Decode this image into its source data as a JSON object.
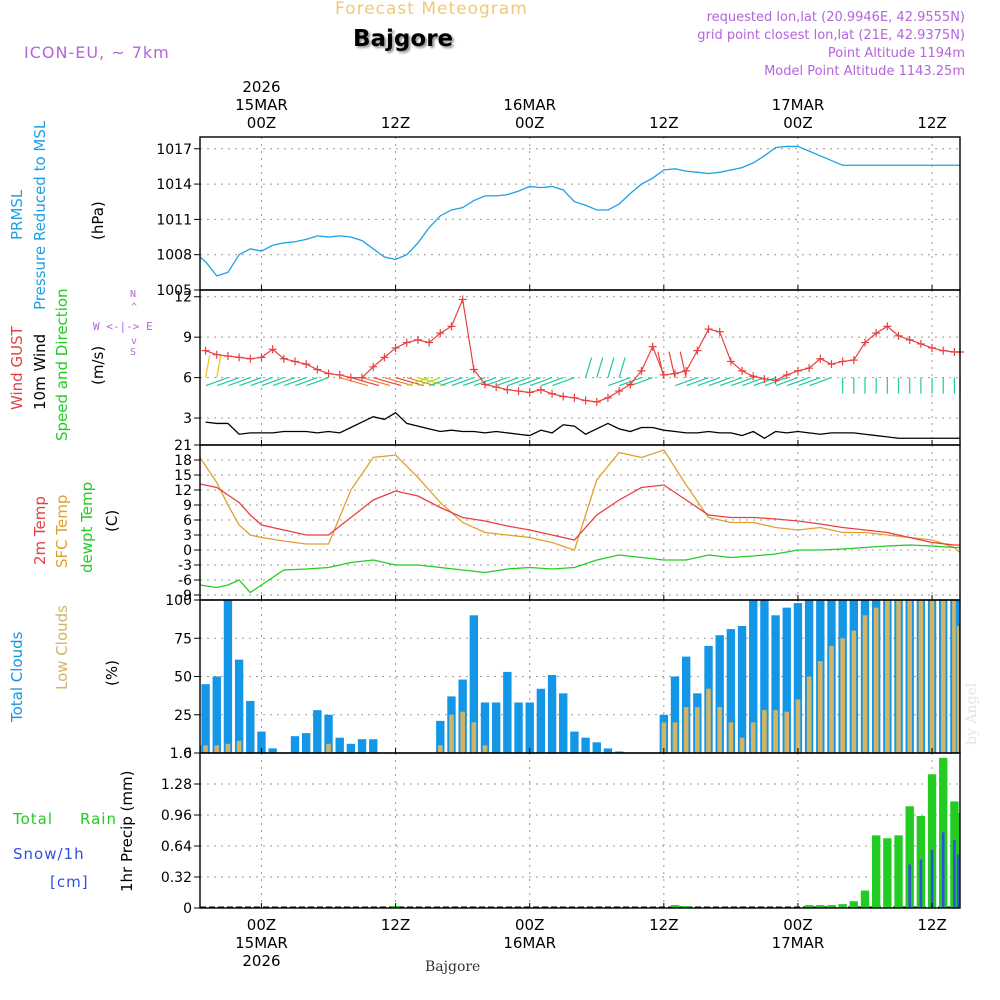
{
  "header": {
    "product": "Forecast Meteogram",
    "location": "Bajgore",
    "model": "ICON-EU, ~ 7km",
    "requested": "requested lon,lat (20.9946E, 42.9555N)",
    "grid_point": "grid point closest lon,lat (21E, 42.9375N)",
    "point_altitude": "Point Altitude 1194m",
    "model_altitude": "Model Point Altitude 1143.25m",
    "footer_location": "Bajgore",
    "watermark": "by Angel"
  },
  "time_axis": {
    "top": [
      {
        "label": "00Z",
        "sub": "15MAR",
        "year": "2026",
        "hour": 0
      },
      {
        "label": "12Z",
        "sub": "",
        "year": "",
        "hour": 12
      },
      {
        "label": "00Z",
        "sub": "16MAR",
        "year": "",
        "hour": 24
      },
      {
        "label": "12Z",
        "sub": "",
        "year": "",
        "hour": 36
      },
      {
        "label": "00Z",
        "sub": "17MAR",
        "year": "",
        "hour": 48
      },
      {
        "label": "12Z",
        "sub": "",
        "year": "",
        "hour": 60
      }
    ],
    "bottom": [
      {
        "label": "00Z",
        "sub": "15MAR",
        "year": "2026",
        "hour": 0
      },
      {
        "label": "12Z",
        "sub": "",
        "year": "",
        "hour": 12
      },
      {
        "label": "00Z",
        "sub": "16MAR",
        "year": "",
        "hour": 24
      },
      {
        "label": "12Z",
        "sub": "",
        "year": "",
        "hour": 36
      },
      {
        "label": "00Z",
        "sub": "17MAR",
        "year": "",
        "hour": 48
      },
      {
        "label": "12Z",
        "sub": "",
        "year": "",
        "hour": 60
      }
    ],
    "start_hour": -5.5,
    "end_hour": 62.5
  },
  "labels": {
    "pressure": {
      "l1": "PRMSL",
      "l2": "Pressure Reduced to MSL",
      "unit": "(hPa)"
    },
    "wind": {
      "l1": "Wind GUST",
      "l2": "10m Wind",
      "l3": "Speed and Direction",
      "unit": "(m/s)",
      "compass_n": "N",
      "compass_s": "S",
      "compass_we": "W <-|-> E",
      "compass_top": "^",
      "compass_bottom": "v"
    },
    "temp": {
      "l1": "2m Temp",
      "l2": "SFC Temp",
      "l3": "dewpt Temp",
      "unit": "(C)"
    },
    "clouds": {
      "l1": "Total Clouds",
      "l2": "Low Clouds",
      "unit": "(%)"
    },
    "precip": {
      "l1": "Total",
      "l1b": "Rain",
      "l2": "Snow/1h",
      "l3": "[cm]",
      "unit": "1hr Precip (mm)"
    }
  },
  "colors": {
    "pressure": "#1ea0e6",
    "gust": "#e84040",
    "wind": "#000000",
    "temp2m": "#e84040",
    "sfc": "#e0a030",
    "dewpt": "#22cc22",
    "total_clouds": "#1496e6",
    "low_clouds": "#d2b464",
    "rain": "#22cc22",
    "snow": "#3050e0",
    "label_purple": "#b464dc",
    "product": "#f0c878"
  },
  "chart_data": [
    {
      "type": "line",
      "title": "PRMSL Pressure Reduced to MSL",
      "ylabel": "(hPa)",
      "ylim": [
        1005,
        1018
      ],
      "yticks": [
        1005,
        1008,
        1011,
        1014,
        1017
      ],
      "x_hours": [
        -5.5,
        -5,
        -4,
        -3,
        -2,
        -1,
        0,
        1,
        2,
        3,
        4,
        5,
        6,
        7,
        8,
        9,
        10,
        11,
        12,
        13,
        14,
        15,
        16,
        17,
        18,
        19,
        20,
        21,
        22,
        23,
        24,
        25,
        26,
        27,
        28,
        29,
        30,
        31,
        32,
        33,
        34,
        35,
        36,
        37,
        38,
        39,
        40,
        41,
        42,
        43,
        44,
        45,
        46,
        47,
        48,
        49,
        50,
        51,
        52,
        53,
        54,
        55,
        56,
        57,
        58,
        59,
        60,
        61,
        62,
        62.5
      ],
      "series": [
        {
          "name": "PRMSL",
          "values": [
            1007.8,
            1007.4,
            1006.2,
            1006.5,
            1008.0,
            1008.5,
            1008.3,
            1008.8,
            1009.0,
            1009.1,
            1009.3,
            1009.6,
            1009.5,
            1009.6,
            1009.5,
            1009.2,
            1008.5,
            1007.8,
            1007.6,
            1008.0,
            1009.0,
            1010.3,
            1011.3,
            1011.8,
            1012.0,
            1012.6,
            1013.0,
            1013.0,
            1013.1,
            1013.4,
            1013.8,
            1013.7,
            1013.8,
            1013.5,
            1012.5,
            1012.2,
            1011.8,
            1011.8,
            1012.3,
            1013.2,
            1014.0,
            1014.5,
            1015.2,
            1015.3,
            1015.1,
            1015.0,
            1014.9,
            1015.0,
            1015.2,
            1015.4,
            1015.8,
            1016.4,
            1017.1,
            1017.2,
            1017.2,
            1016.8,
            1016.4,
            1016.0,
            1015.6,
            1015.6,
            1015.6,
            1015.6,
            1015.6,
            1015.6,
            1015.6,
            1015.6,
            1015.6,
            1015.6,
            1015.6,
            1015.6
          ]
        }
      ]
    },
    {
      "type": "line",
      "title": "Wind GUST / 10m Wind Speed and Direction",
      "ylabel": "(m/s)",
      "ylim": [
        1,
        12.5
      ],
      "yticks": [
        3,
        6,
        9,
        12
      ],
      "gust_x_hours": [
        -5,
        -4,
        -3,
        -2,
        -1,
        0,
        1,
        2,
        3,
        4,
        5,
        6,
        7,
        8,
        9,
        10,
        11,
        12,
        13,
        14,
        15,
        16,
        17,
        18,
        19,
        20,
        21,
        22,
        23,
        24,
        25,
        26,
        27,
        28,
        29,
        30,
        31,
        32,
        33,
        34,
        35,
        36,
        37,
        38,
        39,
        40,
        41,
        42,
        43,
        44,
        45,
        46,
        47,
        48,
        49,
        50,
        51,
        52,
        53,
        54,
        55,
        56,
        57,
        58,
        59,
        60,
        61,
        62,
        62.5
      ],
      "series": [
        {
          "name": "Wind GUST",
          "values": [
            8.0,
            7.7,
            7.6,
            7.5,
            7.4,
            7.5,
            8.1,
            7.4,
            7.2,
            7.0,
            6.6,
            6.3,
            6.2,
            6.0,
            6.0,
            6.8,
            7.5,
            8.2,
            8.6,
            8.8,
            8.6,
            9.3,
            9.8,
            11.8,
            6.6,
            5.5,
            5.3,
            5.1,
            5.0,
            4.9,
            5.1,
            4.8,
            4.6,
            4.5,
            4.3,
            4.2,
            4.5,
            5.0,
            5.5,
            6.5,
            8.3,
            6.2,
            6.3,
            6.5,
            8.0,
            9.6,
            9.4,
            7.2,
            6.5,
            6.1,
            5.9,
            5.8,
            6.2,
            6.5,
            6.7,
            7.4,
            7.0,
            7.2,
            7.3,
            8.6,
            9.3,
            9.8,
            9.1,
            8.8,
            8.5,
            8.2,
            8.0,
            7.9,
            7.9
          ]
        },
        {
          "name": "10m Wind",
          "values": [
            2.7,
            2.6,
            2.6,
            1.8,
            1.9,
            1.9,
            1.9,
            2.0,
            2.0,
            2.0,
            1.9,
            2.0,
            1.9,
            2.3,
            2.7,
            3.1,
            2.9,
            3.4,
            2.6,
            2.4,
            2.2,
            2.0,
            2.1,
            2.0,
            2.0,
            1.9,
            2.0,
            1.9,
            1.8,
            1.7,
            2.1,
            1.9,
            2.5,
            2.4,
            1.8,
            2.2,
            2.6,
            2.2,
            2.0,
            2.3,
            2.3,
            2.1,
            2.0,
            1.9,
            1.9,
            2.0,
            1.9,
            1.9,
            1.7,
            2.0,
            1.5,
            2.0,
            1.9,
            2.0,
            1.9,
            1.8,
            1.9,
            1.9,
            1.9,
            1.8,
            1.7,
            1.6,
            1.5,
            1.5,
            1.5,
            1.5,
            1.5,
            1.5,
            1.5
          ]
        }
      ]
    },
    {
      "type": "line",
      "title": "2m Temp / SFC Temp / dewpt Temp",
      "ylabel": "(C)",
      "ylim": [
        -10,
        21
      ],
      "yticks": [
        -9,
        -6,
        -3,
        0,
        3,
        6,
        9,
        12,
        15,
        18,
        21
      ],
      "x_hours": [
        -5.5,
        -4,
        -3,
        -2,
        -1,
        0,
        2,
        4,
        6,
        8,
        10,
        12,
        14,
        16,
        18,
        20,
        22,
        24,
        26,
        28,
        30,
        32,
        34,
        36,
        38,
        40,
        42,
        44,
        46,
        48,
        50,
        52,
        54,
        56,
        58,
        60,
        62,
        62.5
      ],
      "series": [
        {
          "name": "2m Temp",
          "values": [
            13.2,
            12.5,
            11.0,
            9.5,
            7.0,
            5.0,
            4.0,
            3.0,
            3.0,
            6.5,
            10.0,
            11.8,
            10.8,
            8.5,
            6.5,
            5.8,
            4.8,
            4.0,
            3.0,
            2.0,
            7.0,
            10.0,
            12.5,
            13.0,
            10.0,
            7.0,
            6.5,
            6.5,
            6.2,
            5.8,
            5.2,
            4.5,
            4.0,
            3.5,
            2.5,
            1.5,
            1.0,
            1.0
          ]
        },
        {
          "name": "SFC Temp",
          "values": [
            18.5,
            13.5,
            9.0,
            5.0,
            3.0,
            2.5,
            1.8,
            1.2,
            1.2,
            12.0,
            18.5,
            19.0,
            14.5,
            9.5,
            5.5,
            3.5,
            3.0,
            2.5,
            1.5,
            0.0,
            14.0,
            19.5,
            18.5,
            20.0,
            13.0,
            6.5,
            5.5,
            5.5,
            4.5,
            4.0,
            4.5,
            3.5,
            3.5,
            3.0,
            2.5,
            2.0,
            0.5,
            -0.5
          ]
        },
        {
          "name": "dewpt Temp",
          "values": [
            -7.0,
            -7.5,
            -7.0,
            -6.0,
            -8.5,
            -7.0,
            -4.0,
            -3.8,
            -3.5,
            -2.5,
            -2.0,
            -3.0,
            -3.0,
            -3.5,
            -4.0,
            -4.5,
            -3.8,
            -3.5,
            -3.8,
            -3.5,
            -2.0,
            -1.0,
            -1.5,
            -2.0,
            -2.0,
            -1.0,
            -1.5,
            -1.2,
            -0.8,
            0.0,
            0.0,
            0.2,
            0.5,
            0.8,
            1.0,
            0.8,
            0.5,
            0.5
          ]
        }
      ]
    },
    {
      "type": "bar",
      "title": "Total Clouds / Low Clouds",
      "ylabel": "(%)",
      "ylim": [
        0,
        100
      ],
      "yticks": [
        0,
        25,
        50,
        75,
        100
      ],
      "bar_x_hours": [
        -5.5,
        -5,
        -4,
        -3,
        -2,
        -1,
        0,
        1,
        2,
        3,
        4,
        5,
        6,
        7,
        8,
        9,
        10,
        11,
        12,
        13,
        14,
        15,
        16,
        17,
        18,
        19,
        20,
        21,
        22,
        23,
        24,
        25,
        26,
        27,
        28,
        29,
        30,
        31,
        32,
        33,
        34,
        35,
        36,
        37,
        38,
        39,
        40,
        41,
        42,
        43,
        44,
        45,
        46,
        47,
        48,
        49,
        50,
        51,
        52,
        53,
        54,
        55,
        56,
        57,
        58,
        59,
        60,
        61,
        62,
        62.5
      ],
      "series": [
        {
          "name": "Total Clouds",
          "values": [
            5,
            45,
            50,
            100,
            61,
            34,
            14,
            3,
            0,
            11,
            13,
            28,
            25,
            10,
            6,
            9,
            9,
            0,
            0,
            0,
            0,
            0,
            21,
            37,
            48,
            90,
            33,
            33,
            53,
            33,
            33,
            42,
            51,
            39,
            14,
            10,
            7,
            3,
            1,
            0,
            0,
            0,
            25,
            50,
            63,
            39,
            70,
            77,
            81,
            83,
            100,
            100,
            90,
            95,
            98,
            100,
            100,
            100,
            100,
            100,
            100,
            100,
            100,
            100,
            100,
            100,
            100,
            100,
            100,
            100
          ]
        },
        {
          "name": "Low Clouds",
          "values": [
            5,
            5,
            5,
            6,
            8,
            0,
            0,
            0,
            0,
            0,
            0,
            0,
            6,
            0,
            0,
            0,
            0,
            0,
            0,
            0,
            0,
            0,
            5,
            25,
            27,
            20,
            5,
            0,
            0,
            0,
            0,
            0,
            0,
            0,
            0,
            0,
            0,
            0,
            0,
            0,
            0,
            0,
            20,
            20,
            30,
            30,
            42,
            30,
            20,
            10,
            20,
            28,
            28,
            27,
            35,
            50,
            60,
            70,
            75,
            80,
            90,
            95,
            100,
            100,
            100,
            100,
            100,
            100,
            100,
            83
          ]
        }
      ]
    },
    {
      "type": "bar",
      "title": "1hr Precip",
      "ylabel": "1hr Precip (mm)",
      "ylim": [
        0,
        1.6
      ],
      "yticks": [
        0,
        0.32,
        0.64,
        0.96,
        1.28,
        1.6
      ],
      "bar_x_hours": [
        12,
        37,
        38,
        49,
        50,
        51,
        52,
        53,
        54,
        55,
        56,
        57,
        58,
        59,
        60,
        61,
        62,
        62.5
      ],
      "series": [
        {
          "name": "Total Rain",
          "values": [
            0.02,
            0.03,
            0.02,
            0.03,
            0.03,
            0.03,
            0.04,
            0.07,
            0.18,
            0.75,
            0.72,
            0.75,
            1.05,
            0.95,
            1.38,
            1.55,
            1.1,
            0.98
          ]
        },
        {
          "name": "Snow/1h",
          "values": [
            0,
            0,
            0,
            0,
            0,
            0,
            0,
            0,
            0,
            0,
            0,
            0,
            0.45,
            0.5,
            0.6,
            0.78,
            0.7,
            0.55
          ]
        }
      ]
    }
  ]
}
